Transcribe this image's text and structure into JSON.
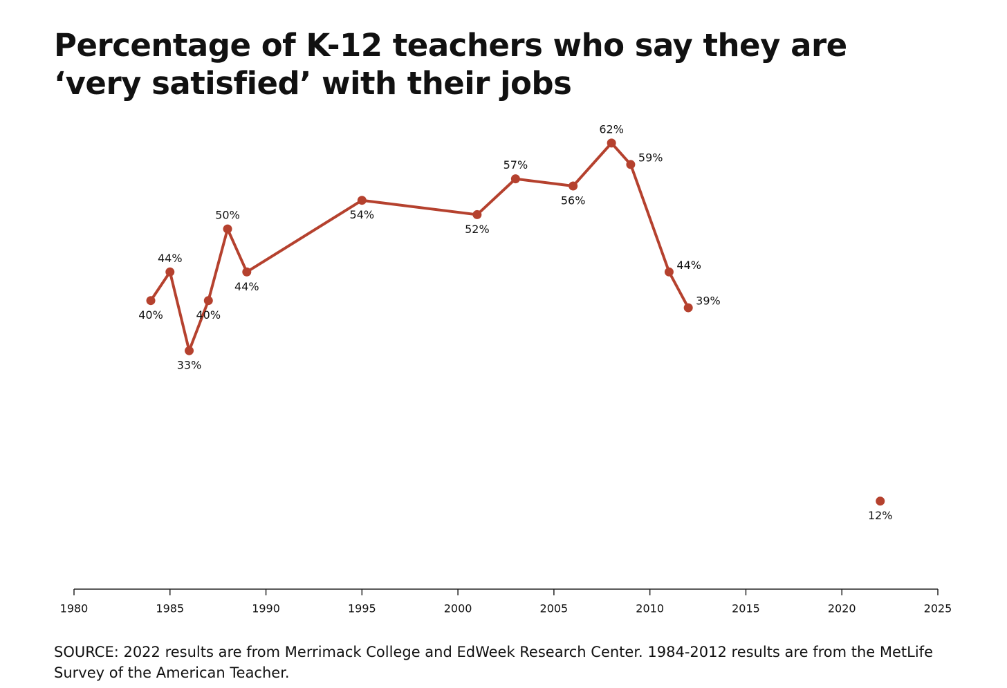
{
  "chart_data": {
    "type": "line",
    "title": "Percentage of K-12 teachers who say they are ‘very satisfied’ with their jobs",
    "source": "SOURCE: 2022 results are from Merrimack College and EdWeek Research Center. 1984-2012 results are from the MetLife Survey of the American Teacher.",
    "series": [
      {
        "color": "#b5412e",
        "x": [
          1984,
          1985,
          1986,
          1987,
          1988,
          1989,
          1995,
          2001,
          2003,
          2006,
          2008,
          2009,
          2011,
          2012
        ],
        "values": [
          40,
          44,
          33,
          40,
          50,
          44,
          54,
          52,
          57,
          56,
          62,
          59,
          44,
          39
        ],
        "value_labels": [
          "40%",
          "44%",
          "33%",
          "40%",
          "50%",
          "44%",
          "54%",
          "52%",
          "57%",
          "56%",
          "62%",
          "59%",
          "44%",
          "39%"
        ]
      },
      {
        "color": "#b5412e",
        "x": [
          2022
        ],
        "values": [
          12
        ],
        "value_labels": [
          "12%"
        ]
      }
    ],
    "xlim": [
      1980,
      2025
    ],
    "xticks": [
      1980,
      1985,
      1990,
      1995,
      2000,
      2005,
      2010,
      2015,
      2020,
      2025
    ],
    "ylim": [
      0,
      70
    ],
    "grid": false
  }
}
